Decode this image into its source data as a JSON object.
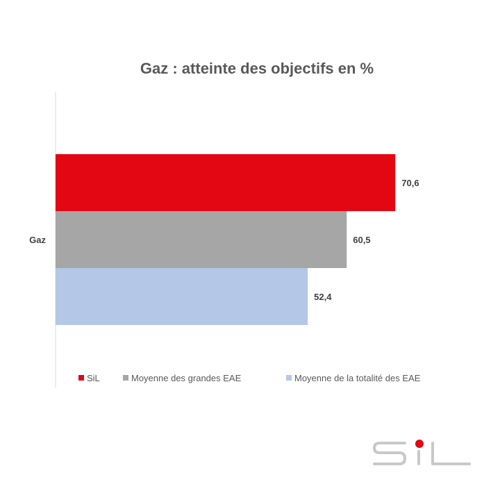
{
  "chart_data": {
    "type": "bar",
    "orientation": "horizontal",
    "title": "Gaz : atteinte des objectifs en %",
    "categories": [
      "Gaz"
    ],
    "series": [
      {
        "name": "SiL",
        "values": [
          70.6
        ],
        "label": "70,6",
        "color": "#e30613"
      },
      {
        "name": "Moyenne des grandes EAE",
        "values": [
          60.5
        ],
        "label": "60,5",
        "color": "#a6a6a6"
      },
      {
        "name": "Moyenne de la totalité des EAE",
        "values": [
          52.4
        ],
        "label": "52,4",
        "color": "#b4c7e7"
      }
    ],
    "xlim": [
      0,
      100
    ],
    "grid": false,
    "legend": "bottom"
  },
  "logo": {
    "text": "SiL",
    "icon": "sil-logo",
    "dot_color": "#e30613",
    "stroke_color": "#c8c8c8"
  }
}
